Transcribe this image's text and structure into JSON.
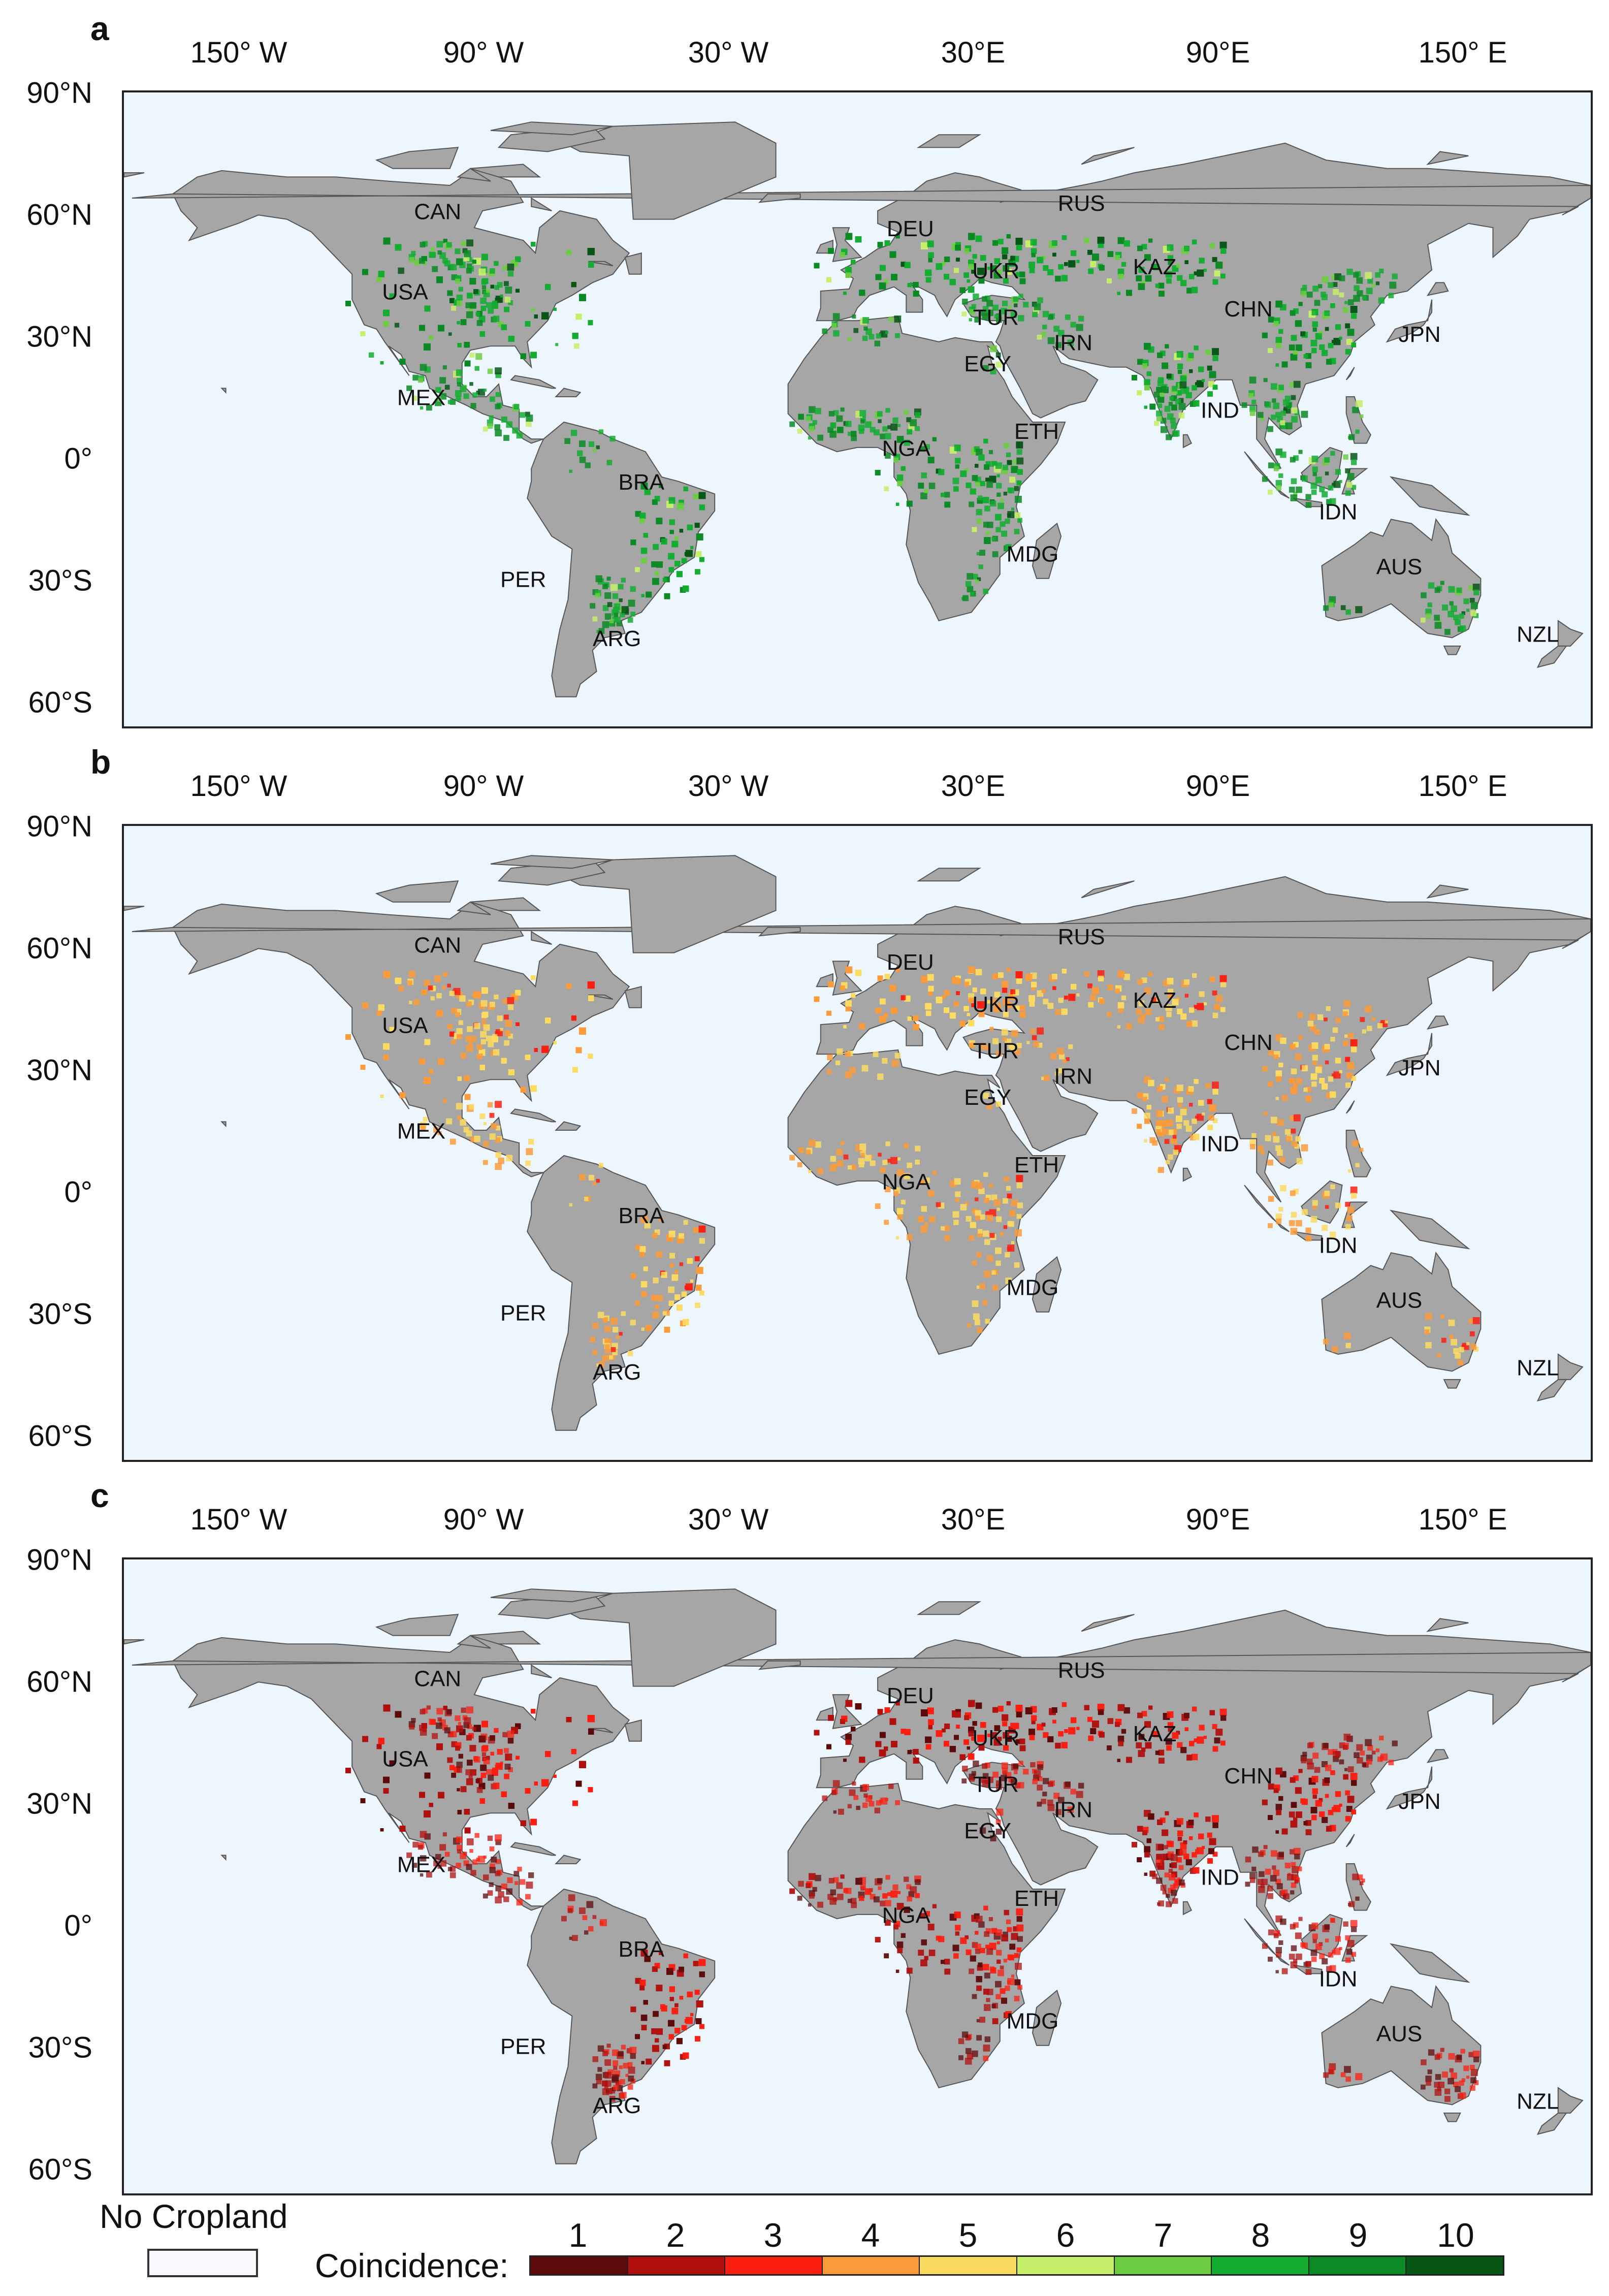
{
  "panels": [
    {
      "letter": "a",
      "scheme": "green"
    },
    {
      "letter": "b",
      "scheme": "orange"
    },
    {
      "letter": "c",
      "scheme": "red"
    }
  ],
  "lon_labels": [
    "150° W",
    "90° W",
    "30° W",
    "30°E",
    "90°E",
    "150° E"
  ],
  "lat_labels": [
    "90°N",
    "60°N",
    "30°N",
    "0°",
    "30°S",
    "60°S"
  ],
  "countries": [
    {
      "code": "CAN",
      "lon": -103,
      "lat": 60
    },
    {
      "code": "USA",
      "lon": -111,
      "lat": 41
    },
    {
      "code": "MEX",
      "lon": -107,
      "lat": 16
    },
    {
      "code": "BRA",
      "lon": -53,
      "lat": -4
    },
    {
      "code": "PER",
      "lon": -82,
      "lat": -27
    },
    {
      "code": "ARG",
      "lon": -59,
      "lat": -41
    },
    {
      "code": "DEU",
      "lon": 13,
      "lat": 56
    },
    {
      "code": "RUS",
      "lon": 55,
      "lat": 62
    },
    {
      "code": "UKR",
      "lon": 34,
      "lat": 46
    },
    {
      "code": "KAZ",
      "lon": 73,
      "lat": 47
    },
    {
      "code": "TUR",
      "lon": 34,
      "lat": 35
    },
    {
      "code": "CHN",
      "lon": 96,
      "lat": 37
    },
    {
      "code": "JPN",
      "lon": 138,
      "lat": 31
    },
    {
      "code": "IRN",
      "lon": 53,
      "lat": 29
    },
    {
      "code": "EGY",
      "lon": 32,
      "lat": 24
    },
    {
      "code": "IND",
      "lon": 89,
      "lat": 13
    },
    {
      "code": "NGA",
      "lon": 12,
      "lat": 4
    },
    {
      "code": "ETH",
      "lon": 44,
      "lat": 8
    },
    {
      "code": "MDG",
      "lon": 43,
      "lat": -21
    },
    {
      "code": "IDN",
      "lon": 118,
      "lat": -11
    },
    {
      "code": "AUS",
      "lon": 133,
      "lat": -24
    },
    {
      "code": "NZL",
      "lon": 167,
      "lat": -40
    }
  ],
  "legend": {
    "no_cropland_label": "No Cropland",
    "title": "Coincidence:",
    "levels": [
      {
        "value": "1",
        "color": "#5c0a0a"
      },
      {
        "value": "2",
        "color": "#b0110f"
      },
      {
        "value": "3",
        "color": "#fb1f12"
      },
      {
        "value": "4",
        "color": "#fa9b3a"
      },
      {
        "value": "5",
        "color": "#fbda60"
      },
      {
        "value": "6",
        "color": "#c6ef6a"
      },
      {
        "value": "7",
        "color": "#6ccc42"
      },
      {
        "value": "8",
        "color": "#14ad32"
      },
      {
        "value": "9",
        "color": "#0b8a25"
      },
      {
        "value": "10",
        "color": "#075616"
      }
    ]
  },
  "colors": {
    "ocean": "#eef6fd",
    "land": "#a6a6a6",
    "no_cropland": "#f7f9fc"
  }
}
